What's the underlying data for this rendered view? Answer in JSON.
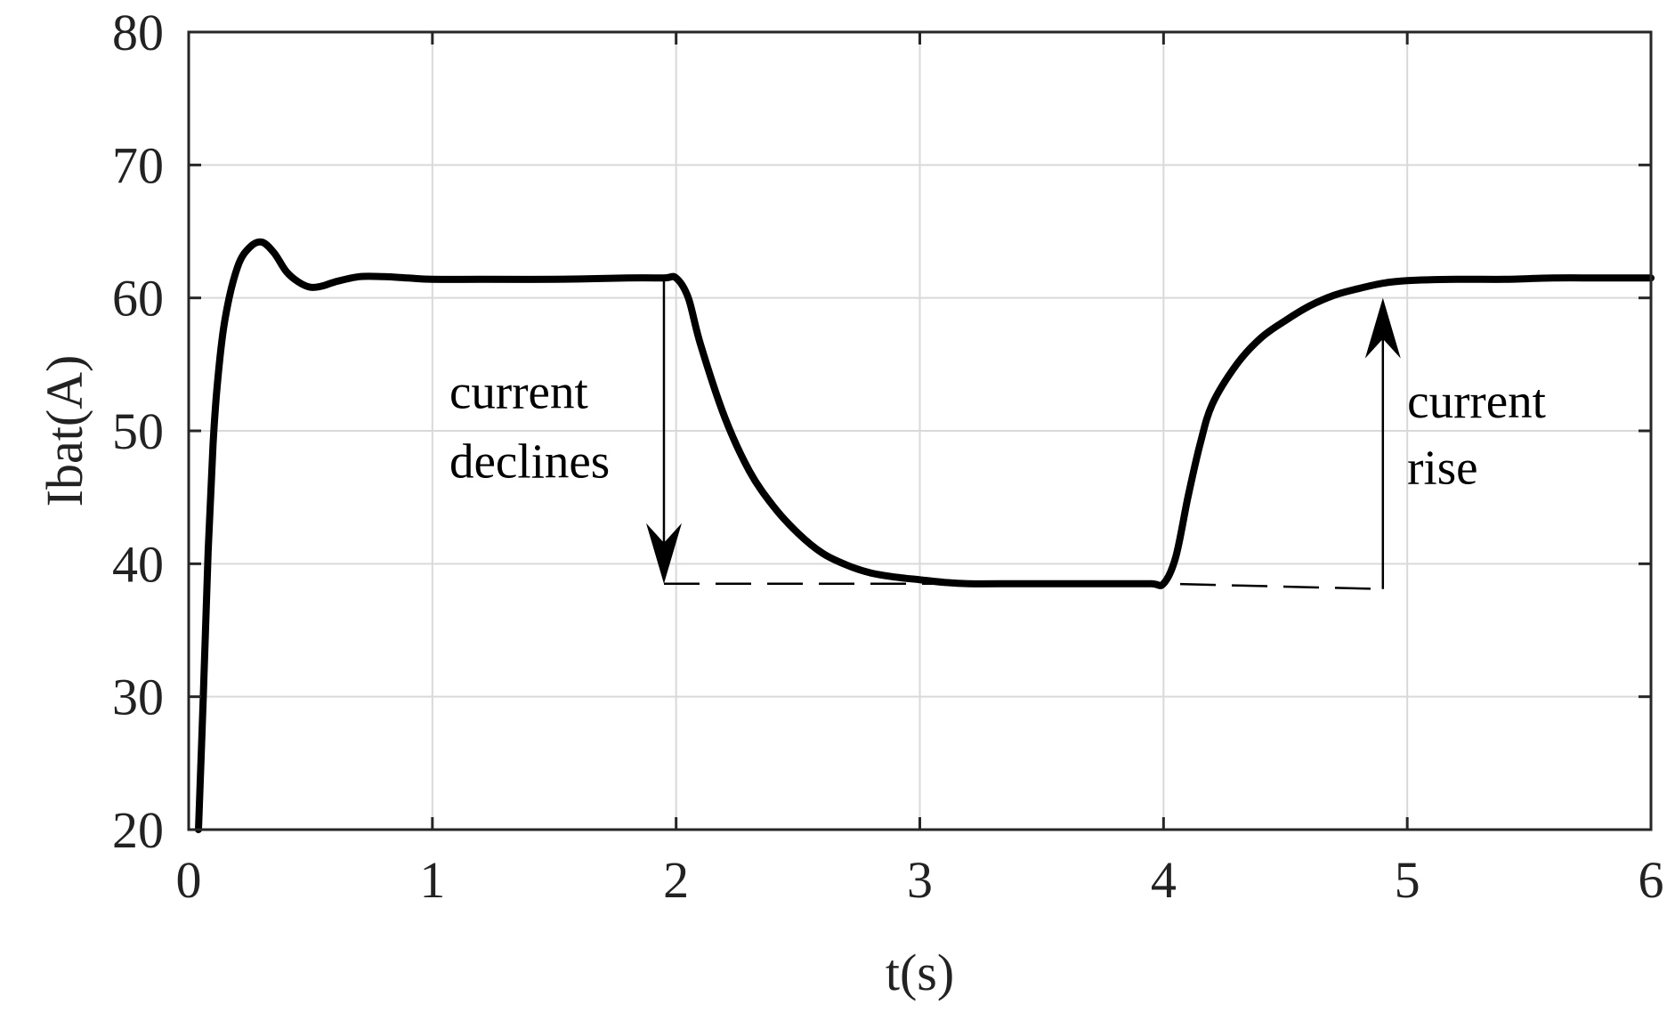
{
  "chart_data": {
    "type": "line",
    "title": "",
    "xlabel": "t(s)",
    "ylabel": "Ibat(A)",
    "xlim": [
      0,
      6
    ],
    "ylim": [
      20,
      80
    ],
    "xticks": [
      0,
      1,
      2,
      3,
      4,
      5,
      6
    ],
    "yticks": [
      20,
      30,
      40,
      50,
      60,
      70,
      80
    ],
    "grid": true,
    "legend": "none",
    "colors": {
      "series": "#000000",
      "grid": "#d9d9d9",
      "axes": "#262626"
    },
    "series": [
      {
        "x": [
          0.04,
          0.06,
          0.08,
          0.1,
          0.12,
          0.15,
          0.2,
          0.25,
          0.3,
          0.35,
          0.4,
          0.45,
          0.5,
          0.55,
          0.6,
          0.7,
          0.8,
          0.9,
          1.0,
          1.2,
          1.5,
          1.8,
          1.95,
          2.0,
          2.05,
          2.1,
          2.2,
          2.3,
          2.4,
          2.5,
          2.6,
          2.7,
          2.8,
          2.9,
          3.0,
          3.1,
          3.2,
          3.4,
          3.6,
          3.8,
          3.95,
          4.0,
          4.05,
          4.1,
          4.15,
          4.2,
          4.3,
          4.4,
          4.5,
          4.6,
          4.7,
          4.8,
          4.9,
          5.0,
          5.2,
          5.4,
          5.6,
          5.8,
          6.0
        ],
        "y": [
          20,
          30,
          41,
          49,
          54,
          58.5,
          62.3,
          63.8,
          64.2,
          63.4,
          62.0,
          61.2,
          60.8,
          60.9,
          61.2,
          61.6,
          61.6,
          61.5,
          61.4,
          61.4,
          61.4,
          61.5,
          61.5,
          61.5,
          60.0,
          56.5,
          51.0,
          47.0,
          44.3,
          42.3,
          40.8,
          39.9,
          39.3,
          39.0,
          38.8,
          38.6,
          38.5,
          38.5,
          38.5,
          38.5,
          38.5,
          38.5,
          40.5,
          45.0,
          49.0,
          52.0,
          55.0,
          57.0,
          58.3,
          59.4,
          60.2,
          60.7,
          61.1,
          61.3,
          61.4,
          61.4,
          61.5,
          61.5,
          61.5
        ]
      }
    ],
    "annotations": [
      {
        "name": "decline",
        "lines": [
          "current",
          "declines"
        ],
        "arrow_x": 1.95,
        "arrow_from_y": 61.5,
        "arrow_to_y": 38.5,
        "text_x": 1.07,
        "text_y": [
          51.7,
          46.5
        ]
      },
      {
        "name": "rise",
        "lines": [
          "current",
          "rise"
        ],
        "arrow_x": 4.9,
        "arrow_from_y": 38.1,
        "arrow_to_y": 60.0,
        "text_x": 5.0,
        "text_y": [
          51.0,
          46.0
        ]
      }
    ],
    "reference_lines": [
      {
        "style": "dashed",
        "x": [
          1.95,
          2.9,
          3.1,
          4.0,
          4.9
        ],
        "y": [
          38.5,
          38.5,
          38.5,
          38.5,
          38.1
        ]
      }
    ]
  }
}
